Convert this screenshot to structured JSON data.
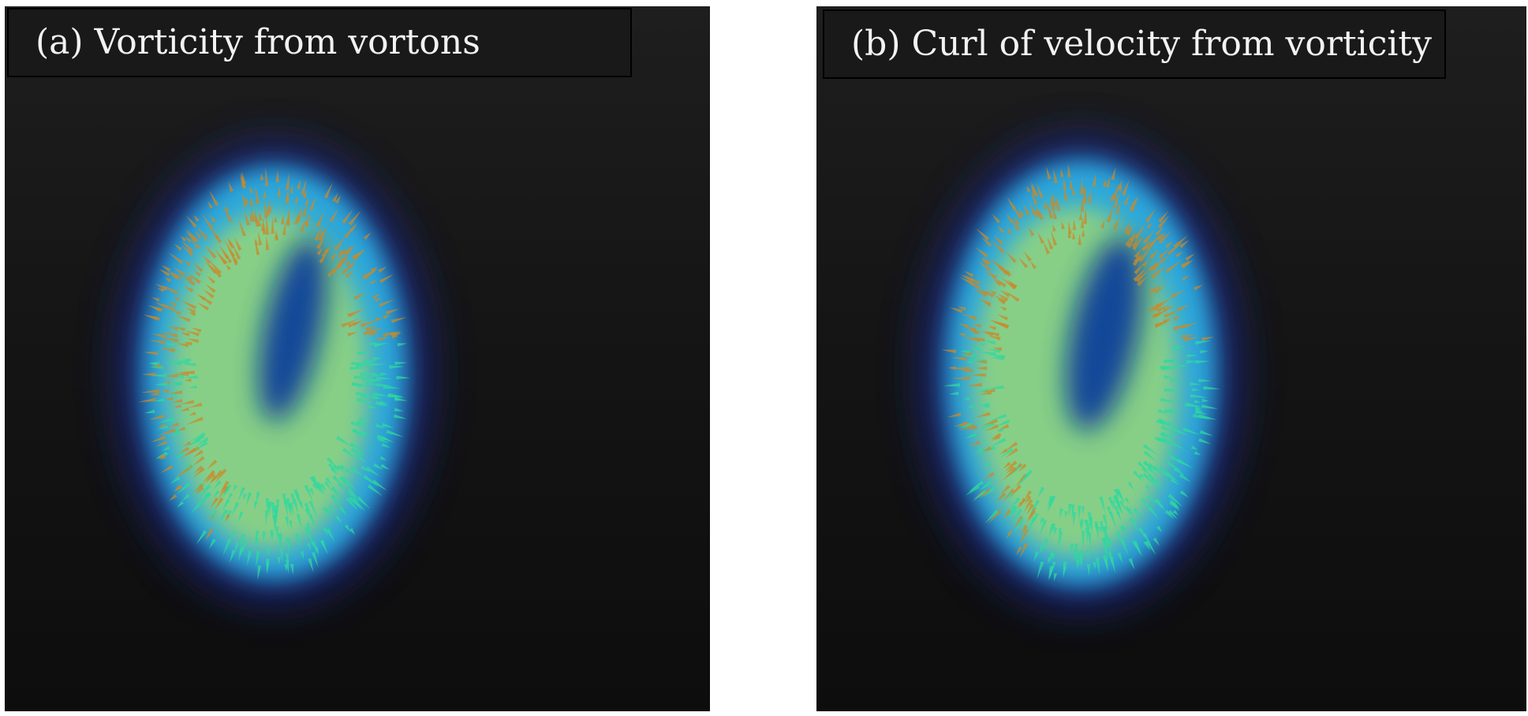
{
  "panels": [
    {
      "caption": "(a) Vorticity from vortons"
    },
    {
      "caption": "(b) Curl of velocity from vorticity"
    }
  ],
  "colors": {
    "background_top": "#1e1e1e",
    "background_bottom": "#0d0d0d",
    "halo": "#1a2a8a",
    "ring_outer": "#2fb6e6",
    "ring_inner": "#a6dd6b",
    "hole": "#0b3f9a",
    "arrow_warm": "#c98a2a",
    "arrow_cool": "#2fd8a0"
  }
}
